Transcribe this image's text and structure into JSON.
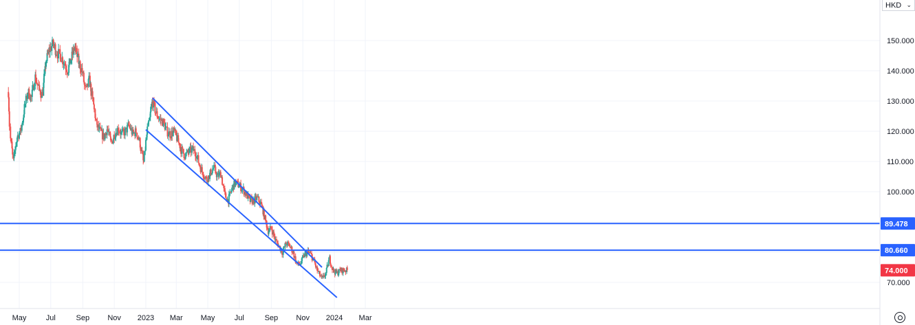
{
  "currency": {
    "label": "HKD"
  },
  "chart_data": {
    "type": "candlestick",
    "x_ticks": [
      "May",
      "Jul",
      "Sep",
      "Nov",
      "2023",
      "Mar",
      "May",
      "Jul",
      "Sep",
      "Nov",
      "2024",
      "Mar"
    ],
    "y_ticks": [
      "150.000",
      "140.000",
      "130.000",
      "120.000",
      "110.000",
      "100.000",
      "70.000"
    ],
    "ylim": [
      62,
      162
    ],
    "grid": true,
    "up_color": "#26a69a",
    "down_color": "#ef5350",
    "line_color": "#2962ff",
    "horizontal_levels": [
      {
        "value": 89.478,
        "label": "89.478"
      },
      {
        "value": 80.66,
        "label": "80.660"
      }
    ],
    "last_price": {
      "value": 74.0,
      "label": "74.000",
      "color": "#f23645"
    },
    "channel": {
      "upper": [
        [
          "2023-01-14",
          131.0
        ],
        [
          "2023-12-08",
          75.0
        ]
      ],
      "lower": [
        [
          "2023-01-01",
          120.5
        ],
        [
          "2024-01-06",
          65.0
        ]
      ]
    },
    "closes": [
      [
        "2022-04-10",
        133
      ],
      [
        "2022-04-14",
        118
      ],
      [
        "2022-04-20",
        110
      ],
      [
        "2022-04-27",
        118
      ],
      [
        "2022-05-04",
        120
      ],
      [
        "2022-05-11",
        127
      ],
      [
        "2022-05-18",
        133
      ],
      [
        "2022-05-25",
        131
      ],
      [
        "2022-06-01",
        138
      ],
      [
        "2022-06-08",
        134
      ],
      [
        "2022-06-15",
        132
      ],
      [
        "2022-06-22",
        143
      ],
      [
        "2022-06-29",
        147
      ],
      [
        "2022-07-06",
        149
      ],
      [
        "2022-07-13",
        146
      ],
      [
        "2022-07-20",
        145
      ],
      [
        "2022-07-27",
        143
      ],
      [
        "2022-08-03",
        140
      ],
      [
        "2022-08-10",
        144
      ],
      [
        "2022-08-17",
        148
      ],
      [
        "2022-08-24",
        143
      ],
      [
        "2022-08-31",
        140
      ],
      [
        "2022-09-07",
        133
      ],
      [
        "2022-09-14",
        137
      ],
      [
        "2022-09-21",
        130
      ],
      [
        "2022-09-28",
        122
      ],
      [
        "2022-10-05",
        120
      ],
      [
        "2022-10-12",
        118
      ],
      [
        "2022-10-19",
        121
      ],
      [
        "2022-10-26",
        116
      ],
      [
        "2022-11-02",
        119
      ],
      [
        "2022-11-09",
        121
      ],
      [
        "2022-11-16",
        119
      ],
      [
        "2022-11-23",
        120
      ],
      [
        "2022-11-30",
        122
      ],
      [
        "2022-12-07",
        119
      ],
      [
        "2022-12-14",
        120
      ],
      [
        "2022-12-21",
        116
      ],
      [
        "2022-12-28",
        109
      ],
      [
        "2023-01-04",
        120
      ],
      [
        "2023-01-09",
        124
      ],
      [
        "2023-01-14",
        130
      ],
      [
        "2023-01-21",
        126
      ],
      [
        "2023-01-28",
        124
      ],
      [
        "2023-02-04",
        123
      ],
      [
        "2023-02-11",
        120
      ],
      [
        "2023-02-18",
        119
      ],
      [
        "2023-02-25",
        120
      ],
      [
        "2023-03-04",
        117
      ],
      [
        "2023-03-11",
        114
      ],
      [
        "2023-03-18",
        112
      ],
      [
        "2023-03-25",
        113
      ],
      [
        "2023-04-01",
        114
      ],
      [
        "2023-04-08",
        113
      ],
      [
        "2023-04-15",
        109
      ],
      [
        "2023-04-22",
        106
      ],
      [
        "2023-04-29",
        104
      ],
      [
        "2023-05-06",
        106
      ],
      [
        "2023-05-13",
        108
      ],
      [
        "2023-05-20",
        105
      ],
      [
        "2023-05-27",
        106
      ],
      [
        "2023-06-03",
        99
      ],
      [
        "2023-06-10",
        97
      ],
      [
        "2023-06-17",
        101
      ],
      [
        "2023-06-24",
        103
      ],
      [
        "2023-07-01",
        102
      ],
      [
        "2023-07-08",
        101
      ],
      [
        "2023-07-15",
        99
      ],
      [
        "2023-07-22",
        97
      ],
      [
        "2023-07-29",
        97
      ],
      [
        "2023-08-05",
        98
      ],
      [
        "2023-08-12",
        96
      ],
      [
        "2023-08-19",
        92
      ],
      [
        "2023-08-26",
        87
      ],
      [
        "2023-09-02",
        88
      ],
      [
        "2023-09-09",
        84
      ],
      [
        "2023-09-16",
        82
      ],
      [
        "2023-09-23",
        80
      ],
      [
        "2023-09-30",
        83
      ],
      [
        "2023-10-07",
        82
      ],
      [
        "2023-10-14",
        80
      ],
      [
        "2023-10-21",
        76
      ],
      [
        "2023-10-28",
        76
      ],
      [
        "2023-11-04",
        79
      ],
      [
        "2023-11-11",
        80
      ],
      [
        "2023-11-18",
        79
      ],
      [
        "2023-11-25",
        76
      ],
      [
        "2023-12-02",
        73
      ],
      [
        "2023-12-09",
        71
      ],
      [
        "2023-12-16",
        73
      ],
      [
        "2023-12-23",
        78
      ],
      [
        "2023-12-30",
        74
      ],
      [
        "2024-01-06",
        73
      ],
      [
        "2024-01-13",
        74
      ],
      [
        "2024-01-20",
        74
      ],
      [
        "2024-01-27",
        74
      ]
    ]
  }
}
